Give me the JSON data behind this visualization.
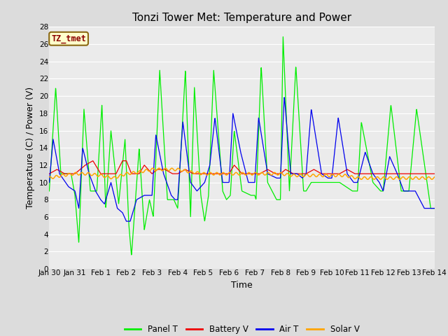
{
  "title": "Tonzi Tower Met: Temperature and Power",
  "xlabel": "Time",
  "ylabel": "Temperature (C) / Power (V)",
  "annotation_text": "TZ_tmet",
  "annotation_color": "#8B0000",
  "annotation_bg": "#FFFFCC",
  "annotation_border": "#8B6914",
  "xlim_start": 0,
  "xlim_end": 15,
  "ylim": [
    0,
    28
  ],
  "yticks": [
    0,
    2,
    4,
    6,
    8,
    10,
    12,
    14,
    16,
    18,
    20,
    22,
    24,
    26,
    28
  ],
  "xtick_labels": [
    "Jan 30",
    "Jan 31",
    "Feb 1",
    "Feb 2",
    "Feb 3",
    "Feb 4",
    "Feb 5",
    "Feb 6",
    "Feb 7",
    "Feb 8",
    "Feb 9",
    "Feb 10",
    "Feb 11",
    "Feb 12",
    "Feb 13",
    "Feb 14"
  ],
  "xtick_positions": [
    0,
    1,
    2,
    3,
    4,
    5,
    6,
    7,
    8,
    9,
    10,
    11,
    12,
    13,
    14,
    15
  ],
  "bg_color": "#DCDCDC",
  "plot_bg_color": "#EBEBEB",
  "grid_color": "#FFFFFF",
  "line_colors": {
    "panel_t": "#00EE00",
    "battery_v": "#EE0000",
    "air_t": "#0000EE",
    "solar_v": "#FFA500"
  },
  "legend_labels": [
    "Panel T",
    "Battery V",
    "Air T",
    "Solar V"
  ],
  "title_fontsize": 11,
  "axis_fontsize": 9,
  "tick_fontsize": 7.5,
  "legend_fontsize": 8.5
}
